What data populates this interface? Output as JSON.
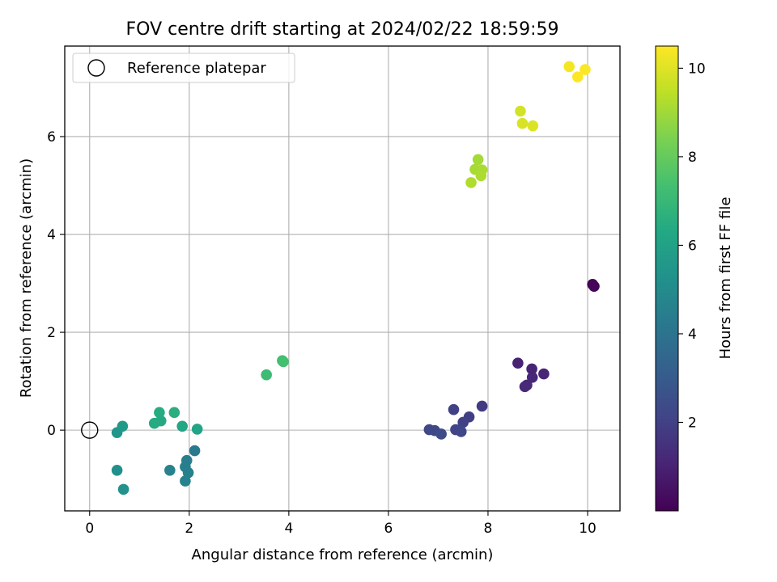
{
  "chart_data": {
    "type": "scatter",
    "title": "FOV centre drift starting at 2024/02/22 18:59:59",
    "xlabel": "Angular distance from reference (arcmin)",
    "ylabel": "Rotation from reference (arcmin)",
    "xlim": [
      -0.5,
      10.65
    ],
    "ylim": [
      -1.65,
      7.85
    ],
    "xticks": [
      0,
      2,
      4,
      6,
      8,
      10
    ],
    "yticks": [
      0,
      2,
      4,
      6
    ],
    "grid": true,
    "legend": {
      "position": "top-left",
      "entries": [
        "Reference platepar"
      ]
    },
    "reference_point": {
      "label": "Reference platepar",
      "x": 0,
      "y": 0
    },
    "colorbar": {
      "label": "Hours from first FF file",
      "colormap": "viridis",
      "range": [
        0,
        10.5
      ],
      "ticks": [
        2,
        4,
        6,
        8,
        10
      ]
    },
    "points": [
      {
        "x": 10.1,
        "y": 2.98,
        "c": 0.05
      },
      {
        "x": 10.13,
        "y": 2.94,
        "c": 0.15
      },
      {
        "x": 8.6,
        "y": 1.37,
        "c": 1.0
      },
      {
        "x": 8.88,
        "y": 1.25,
        "c": 1.05
      },
      {
        "x": 9.12,
        "y": 1.15,
        "c": 1.1
      },
      {
        "x": 8.89,
        "y": 1.08,
        "c": 1.15
      },
      {
        "x": 8.78,
        "y": 0.92,
        "c": 1.2
      },
      {
        "x": 8.74,
        "y": 0.89,
        "c": 1.25
      },
      {
        "x": 7.88,
        "y": 0.49,
        "c": 1.8
      },
      {
        "x": 7.62,
        "y": 0.27,
        "c": 1.9
      },
      {
        "x": 7.31,
        "y": 0.42,
        "c": 2.0
      },
      {
        "x": 7.5,
        "y": 0.16,
        "c": 2.05
      },
      {
        "x": 7.35,
        "y": 0.01,
        "c": 2.15
      },
      {
        "x": 7.46,
        "y": -0.03,
        "c": 2.2
      },
      {
        "x": 6.82,
        "y": 0.01,
        "c": 2.3
      },
      {
        "x": 6.93,
        "y": -0.01,
        "c": 2.35
      },
      {
        "x": 7.06,
        "y": -0.08,
        "c": 2.4
      },
      {
        "x": 2.11,
        "y": -0.42,
        "c": 4.3
      },
      {
        "x": 1.95,
        "y": -0.62,
        "c": 4.45
      },
      {
        "x": 1.92,
        "y": -0.75,
        "c": 4.5
      },
      {
        "x": 1.98,
        "y": -0.87,
        "c": 4.55
      },
      {
        "x": 1.61,
        "y": -0.82,
        "c": 4.6
      },
      {
        "x": 1.92,
        "y": -1.04,
        "c": 4.65
      },
      {
        "x": 0.55,
        "y": -0.82,
        "c": 5.2
      },
      {
        "x": 0.68,
        "y": -1.21,
        "c": 5.3
      },
      {
        "x": 0.55,
        "y": -0.05,
        "c": 5.5
      },
      {
        "x": 0.66,
        "y": 0.08,
        "c": 5.6
      },
      {
        "x": 2.16,
        "y": 0.02,
        "c": 6.1
      },
      {
        "x": 1.86,
        "y": 0.08,
        "c": 6.2
      },
      {
        "x": 1.43,
        "y": 0.19,
        "c": 6.35
      },
      {
        "x": 1.3,
        "y": 0.14,
        "c": 6.4
      },
      {
        "x": 1.4,
        "y": 0.36,
        "c": 6.45
      },
      {
        "x": 1.7,
        "y": 0.36,
        "c": 6.55
      },
      {
        "x": 3.55,
        "y": 1.13,
        "c": 7.15
      },
      {
        "x": 3.87,
        "y": 1.42,
        "c": 7.3
      },
      {
        "x": 3.89,
        "y": 1.4,
        "c": 7.35
      },
      {
        "x": 7.8,
        "y": 5.53,
        "c": 9.05
      },
      {
        "x": 7.74,
        "y": 5.33,
        "c": 9.1
      },
      {
        "x": 7.88,
        "y": 5.32,
        "c": 9.15
      },
      {
        "x": 7.86,
        "y": 5.2,
        "c": 9.2
      },
      {
        "x": 7.66,
        "y": 5.06,
        "c": 9.25
      },
      {
        "x": 8.65,
        "y": 6.52,
        "c": 9.8
      },
      {
        "x": 8.69,
        "y": 6.27,
        "c": 9.9
      },
      {
        "x": 8.9,
        "y": 6.22,
        "c": 9.95
      },
      {
        "x": 9.63,
        "y": 7.43,
        "c": 10.35
      },
      {
        "x": 9.95,
        "y": 7.37,
        "c": 10.45
      },
      {
        "x": 9.8,
        "y": 7.22,
        "c": 10.5
      }
    ]
  }
}
